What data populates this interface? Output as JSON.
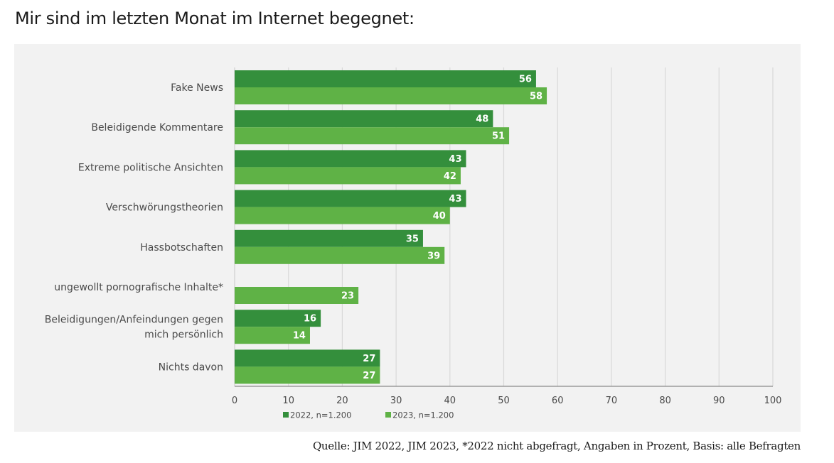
{
  "title": "Mir sind im letzten Monat im Internet begegnet:",
  "source": "Quelle: JIM 2022, JIM 2023, *2022 nicht abgefragt, Angaben in Prozent, Basis: alle Befragten",
  "colors": {
    "series_2022": "#348f3c",
    "series_2023": "#5fb246",
    "panel_bg": "#f2f2f2",
    "grid": "#d9d9d9"
  },
  "chart_data": {
    "type": "bar",
    "orientation": "horizontal",
    "title": "Mir sind im letzten Monat im Internet begegnet:",
    "xlabel": "",
    "ylabel": "",
    "xlim": [
      0,
      100
    ],
    "xticks": [
      0,
      10,
      20,
      30,
      40,
      50,
      60,
      70,
      80,
      90,
      100
    ],
    "grid": true,
    "legend_position": "bottom-left",
    "categories": [
      [
        "Fake News"
      ],
      [
        "Beleidigende Kommentare"
      ],
      [
        "Extreme politische Ansichten"
      ],
      [
        "Verschwörungstheorien"
      ],
      [
        "Hassbotschaften"
      ],
      [
        "ungewollt pornografische Inhalte*"
      ],
      [
        "Beleidigungen/Anfeindungen gegen",
        "mich persönlich"
      ],
      [
        "Nichts davon"
      ]
    ],
    "series": [
      {
        "name": "2022, n=1.200",
        "values": [
          56,
          48,
          43,
          43,
          35,
          null,
          16,
          27
        ]
      },
      {
        "name": "2023, n=1.200",
        "values": [
          58,
          51,
          42,
          40,
          39,
          23,
          14,
          27
        ]
      }
    ]
  }
}
